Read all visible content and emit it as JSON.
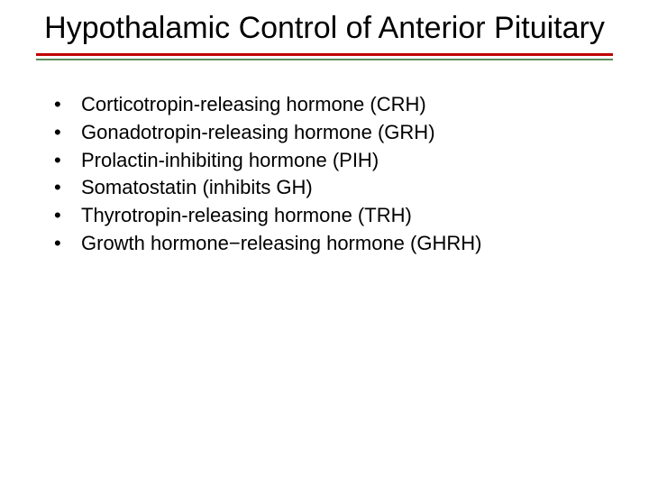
{
  "title": "Hypothalamic Control of Anterior Pituitary",
  "bullets": {
    "marker": "•",
    "items": [
      "Corticotropin-releasing hormone (CRH)",
      "Gonadotropin-releasing hormone (GRH)",
      "Prolactin-inhibiting hormone (PIH)",
      "Somatostatin (inhibits GH)",
      "Thyrotropin-releasing hormone (TRH)",
      "Growth hormone−releasing hormone (GHRH)"
    ]
  },
  "styling": {
    "title_fontsize": 34,
    "title_color": "#000000",
    "bullet_fontsize": 22,
    "bullet_color": "#000000",
    "divider_red": "#c00000",
    "divider_green": "#5a8a5a",
    "background_color": "#ffffff"
  }
}
